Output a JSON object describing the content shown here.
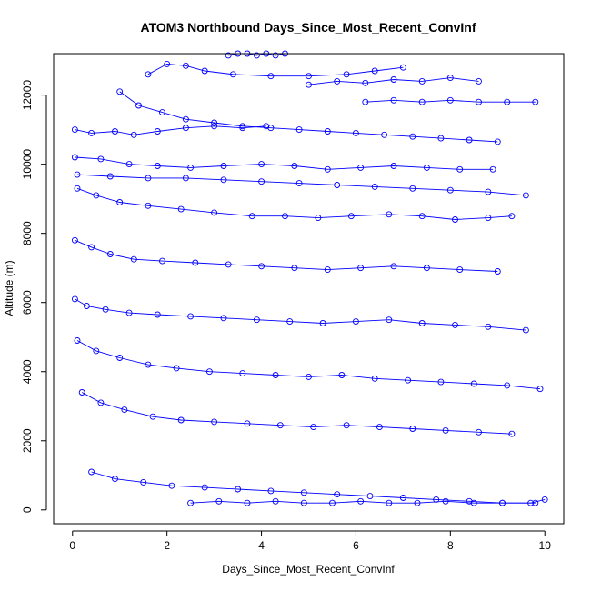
{
  "chart_data": {
    "type": "scatter",
    "title": "ATOM3 Northbound Days_Since_Most_Recent_ConvInf",
    "xlabel": "Days_Since_Most_Recent_ConvInf",
    "ylabel": "Altitude (m)",
    "xlim": [
      -0.4,
      10.4
    ],
    "ylim": [
      -400,
      13200
    ],
    "xticks": [
      0,
      2,
      4,
      6,
      8,
      10
    ],
    "yticks": [
      0,
      2000,
      4000,
      6000,
      8000,
      10000,
      12000
    ],
    "grid": false,
    "legend": "none",
    "marker": "open circle",
    "connected": true,
    "color": "#0000ff",
    "series": [
      {
        "x": [
          0.05,
          0.4,
          0.9,
          1.3,
          1.8,
          2.4,
          3.0,
          3.6,
          4.1
        ],
        "y": [
          11000,
          10900,
          10950,
          10850,
          10950,
          11050,
          11100,
          11050,
          11100
        ]
      },
      {
        "x": [
          3.3,
          3.5,
          3.7,
          3.9,
          4.1,
          4.3,
          4.5
        ],
        "y": [
          13150,
          13200,
          13200,
          13150,
          13200,
          13150,
          13200
        ]
      },
      {
        "x": [
          1.6,
          2.0,
          2.4,
          2.8,
          3.4,
          4.2,
          5.0,
          5.8,
          6.4,
          7.0
        ],
        "y": [
          12600,
          12900,
          12850,
          12700,
          12600,
          12550,
          12550,
          12600,
          12700,
          12800
        ]
      },
      {
        "x": [
          0.05,
          0.6,
          1.2,
          1.8,
          2.5,
          3.2,
          4.0,
          4.7,
          5.4,
          6.1,
          6.8,
          7.5,
          8.2,
          8.9
        ],
        "y": [
          10200,
          10150,
          10000,
          9950,
          9900,
          9950,
          10000,
          9950,
          9850,
          9900,
          9950,
          9900,
          9850,
          9850
        ]
      },
      {
        "x": [
          0.1,
          0.5,
          1.0,
          1.6,
          2.3,
          3.0,
          3.8,
          4.5,
          5.2,
          5.9,
          6.7,
          7.4,
          8.1,
          8.8,
          9.3
        ],
        "y": [
          9300,
          9100,
          8900,
          8800,
          8700,
          8600,
          8500,
          8500,
          8450,
          8500,
          8550,
          8500,
          8400,
          8450,
          8500
        ]
      },
      {
        "x": [
          0.05,
          0.4,
          0.8,
          1.3,
          1.9,
          2.6,
          3.3,
          4.0,
          4.7,
          5.4,
          6.1,
          6.8,
          7.5,
          8.2,
          9.0
        ],
        "y": [
          7800,
          7600,
          7400,
          7250,
          7200,
          7150,
          7100,
          7050,
          7000,
          6950,
          7000,
          7050,
          7000,
          6950,
          6900
        ]
      },
      {
        "x": [
          0.05,
          0.3,
          0.7,
          1.2,
          1.8,
          2.5,
          3.2,
          3.9,
          4.6,
          5.3,
          6.0,
          6.7,
          7.4,
          8.1,
          8.8,
          9.6
        ],
        "y": [
          6100,
          5900,
          5800,
          5700,
          5650,
          5600,
          5550,
          5500,
          5450,
          5400,
          5450,
          5500,
          5400,
          5350,
          5300,
          5200
        ]
      },
      {
        "x": [
          0.1,
          0.5,
          1.0,
          1.6,
          2.2,
          2.9,
          3.6,
          4.3,
          5.0,
          5.7,
          6.4,
          7.1,
          7.8,
          8.5,
          9.2,
          9.9
        ],
        "y": [
          4900,
          4600,
          4400,
          4200,
          4100,
          4000,
          3950,
          3900,
          3850,
          3900,
          3800,
          3750,
          3700,
          3650,
          3600,
          3500
        ]
      },
      {
        "x": [
          0.2,
          0.6,
          1.1,
          1.7,
          2.3,
          3.0,
          3.7,
          4.4,
          5.1,
          5.8,
          6.5,
          7.2,
          7.9,
          8.6,
          9.3
        ],
        "y": [
          3400,
          3100,
          2900,
          2700,
          2600,
          2550,
          2500,
          2450,
          2400,
          2450,
          2400,
          2350,
          2300,
          2250,
          2200
        ]
      },
      {
        "x": [
          0.4,
          0.9,
          1.5,
          2.1,
          2.8,
          3.5,
          4.2,
          4.9,
          5.6,
          6.3,
          7.0,
          7.7,
          8.4,
          9.1,
          9.8
        ],
        "y": [
          1100,
          900,
          800,
          700,
          650,
          600,
          550,
          500,
          450,
          400,
          350,
          300,
          250,
          200,
          200
        ]
      },
      {
        "x": [
          2.5,
          3.1,
          3.7,
          4.3,
          4.9,
          5.5,
          6.1,
          6.7,
          7.3,
          7.9,
          8.5,
          9.1,
          9.7,
          10.0
        ],
        "y": [
          200,
          250,
          200,
          250,
          200,
          200,
          250,
          200,
          200,
          250,
          200,
          200,
          200,
          300
        ]
      },
      {
        "x": [
          0.1,
          0.8,
          1.6,
          2.4,
          3.2,
          4.0,
          4.8,
          5.6,
          6.4,
          7.2,
          8.0,
          8.8,
          9.6
        ],
        "y": [
          9700,
          9650,
          9600,
          9600,
          9550,
          9500,
          9450,
          9400,
          9350,
          9300,
          9250,
          9200,
          9100
        ]
      },
      {
        "x": [
          6.2,
          6.8,
          7.4,
          8.0,
          8.6,
          9.2,
          9.8
        ],
        "y": [
          11800,
          11850,
          11800,
          11850,
          11800,
          11800,
          11800
        ]
      },
      {
        "x": [
          5.0,
          5.6,
          6.2,
          6.8,
          7.4,
          8.0,
          8.6
        ],
        "y": [
          12300,
          12400,
          12350,
          12450,
          12400,
          12500,
          12400
        ]
      },
      {
        "x": [
          1.0,
          1.4,
          1.9,
          2.4,
          3.0,
          3.6,
          4.2,
          4.8,
          5.4,
          6.0,
          6.6,
          7.2,
          7.8,
          8.4,
          9.0
        ],
        "y": [
          12100,
          11700,
          11500,
          11300,
          11200,
          11100,
          11050,
          11000,
          10950,
          10900,
          10850,
          10800,
          10750,
          10700,
          10650
        ]
      }
    ]
  }
}
